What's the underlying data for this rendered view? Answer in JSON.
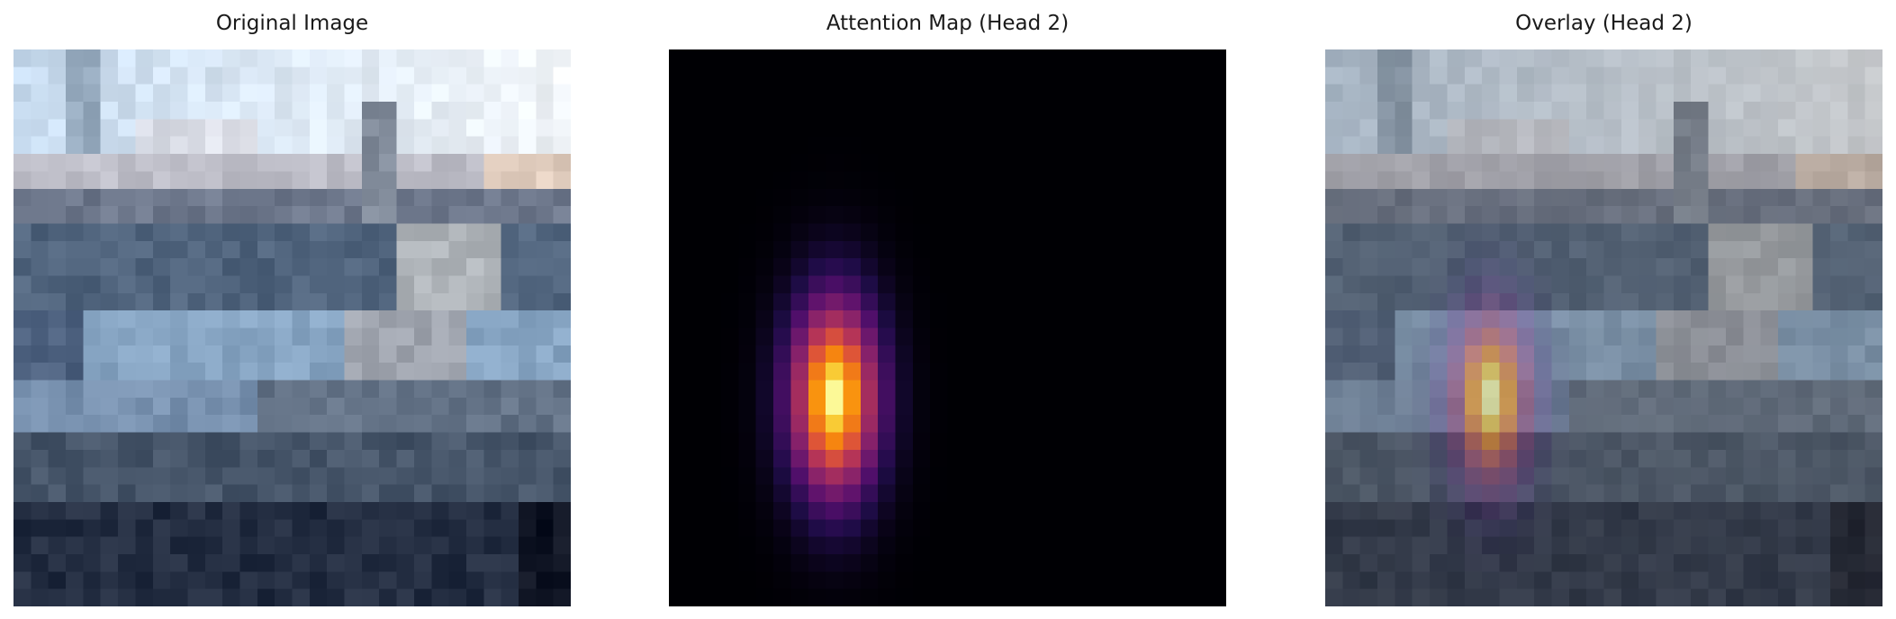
{
  "panels": [
    {
      "title": "Original Image"
    },
    {
      "title": "Attention Map (Head 2)"
    },
    {
      "title": "Overlay (Head 2)"
    }
  ],
  "colors": {
    "background": "#ffffff",
    "attention_background": "#000004",
    "colormap": "inferno"
  }
}
